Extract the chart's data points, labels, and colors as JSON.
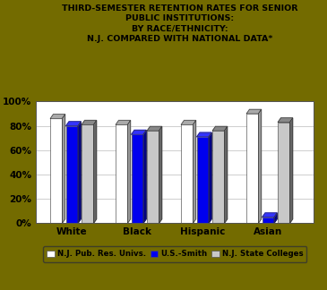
{
  "title_lines": [
    "THIRD-SEMESTER RETENTION RATES FOR SENIOR",
    "PUBLIC INSTITUTIONS:",
    "BY RACE/ETHNICITY:",
    "N.J. COMPARED WITH NATIONAL DATA*"
  ],
  "categories": [
    "White",
    "Black",
    "Hispanic",
    "Asian"
  ],
  "series": {
    "NJ_Pub_Res": [
      86,
      81,
      81,
      90
    ],
    "US_Smith": [
      80,
      73,
      71,
      5
    ],
    "NJ_State": [
      81,
      76,
      76,
      83
    ]
  },
  "colors": {
    "NJ_Pub_Res": "#FFFFFF",
    "US_Smith": "#0000EE",
    "NJ_State": "#C8C8C8",
    "top_NJ_Pub_Res": "#AAAAAA",
    "top_US_Smith": "#3333FF",
    "top_NJ_State": "#888888",
    "side_NJ_Pub_Res": "#999999",
    "side_US_Smith": "#000088",
    "side_NJ_State": "#666666",
    "background": "#736B00",
    "plot_bg": "#FFFFFF",
    "grid": "#BBBBBB"
  },
  "legend_labels": [
    "N.J. Pub. Res. Univs.",
    "U.S.-Smith",
    "N.J. State Colleges"
  ],
  "ylim": [
    0,
    100
  ],
  "yticks": [
    0,
    20,
    40,
    60,
    80,
    100
  ],
  "ytick_labels": [
    "0%",
    "20%",
    "40%",
    "60%",
    "80%",
    "100%"
  ]
}
